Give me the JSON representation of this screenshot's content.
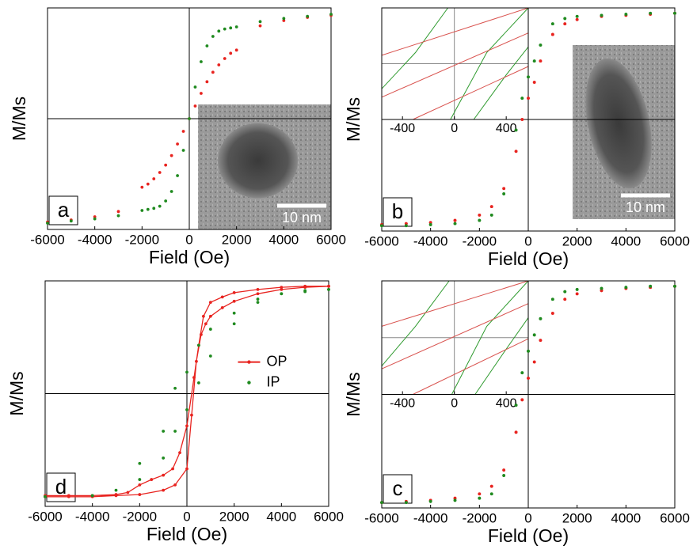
{
  "chart_data": [
    {
      "type": "scatter",
      "panel_label": "a",
      "xlabel": "Field (Oe)",
      "ylabel": "M/Ms",
      "xlim": [
        -6000,
        6000
      ],
      "ylim": [
        -1.05,
        1.05
      ],
      "xticks": [
        -6000,
        -4000,
        -2000,
        0,
        2000,
        4000,
        6000
      ],
      "x": [
        -6000,
        -5000,
        -4000,
        -3000,
        -2000,
        -1750,
        -1500,
        -1250,
        -1000,
        -750,
        -500,
        -250,
        0,
        250,
        500,
        750,
        1000,
        1250,
        1500,
        1750,
        2000,
        3000,
        4000,
        5000,
        6000
      ],
      "series": [
        {
          "color": "#e8231f",
          "values": [
            -0.98,
            -0.96,
            -0.93,
            -0.88,
            -0.65,
            -0.62,
            -0.57,
            -0.51,
            -0.44,
            -0.35,
            -0.24,
            -0.12,
            0,
            0.12,
            0.24,
            0.35,
            0.44,
            0.51,
            0.57,
            0.62,
            0.65,
            0.88,
            0.93,
            0.96,
            0.98
          ]
        },
        {
          "color": "#1f8a1f",
          "values": [
            -0.99,
            -0.97,
            -0.95,
            -0.92,
            -0.87,
            -0.86,
            -0.85,
            -0.83,
            -0.78,
            -0.69,
            -0.54,
            -0.3,
            0,
            0.3,
            0.54,
            0.69,
            0.78,
            0.83,
            0.85,
            0.86,
            0.87,
            0.92,
            0.95,
            0.97,
            0.99
          ]
        }
      ],
      "image": {
        "scale_label": "10 nm"
      }
    },
    {
      "type": "scatter",
      "panel_label": "b",
      "xlabel": "Field (Oe)",
      "ylabel": "M/Ms",
      "xlim": [
        -6000,
        6000
      ],
      "ylim": [
        -1.05,
        1.05
      ],
      "xticks": [
        -6000,
        -4000,
        -2000,
        0,
        2000,
        4000,
        6000
      ],
      "series": [
        {
          "color": "#e8231f",
          "x": [
            6000,
            5000,
            4000,
            3000,
            2000,
            1500,
            1000,
            500,
            250,
            0,
            -250,
            -500,
            -1000,
            -1500,
            -2000,
            -3000,
            -4000,
            -5000,
            -6000,
            -6000,
            -5000,
            -4000,
            -3000,
            -2000,
            -1500,
            -1000,
            -500,
            -250,
            0,
            250,
            500,
            1000,
            1500,
            2000,
            3000,
            4000,
            5000,
            6000
          ],
          "y": [
            1,
            0.99,
            0.98,
            0.97,
            0.94,
            0.9,
            0.8,
            0.55,
            0.35,
            0.2,
            0,
            -0.3,
            -0.65,
            -0.82,
            -0.9,
            -0.95,
            -0.97,
            -0.98,
            -0.99,
            -0.99,
            -0.98,
            -0.97,
            -0.95,
            -0.9,
            -0.82,
            -0.65,
            -0.3,
            0,
            0.2,
            0.35,
            0.55,
            0.8,
            0.9,
            0.94,
            0.97,
            0.98,
            0.99,
            1
          ]
        },
        {
          "color": "#1f8a1f",
          "x": [
            6000,
            5000,
            4000,
            3000,
            2000,
            1500,
            1000,
            500,
            250,
            0,
            -250,
            -500,
            -1000,
            -1500,
            -2000,
            -3000,
            -4000,
            -5000,
            -6000,
            -6000,
            -5000,
            -4000,
            -3000,
            -2000,
            -1500,
            -1000,
            -500,
            -250,
            0,
            250,
            500,
            1000,
            1500,
            2000,
            3000,
            4000,
            5000,
            6000
          ],
          "y": [
            1,
            1,
            0.99,
            0.98,
            0.97,
            0.95,
            0.9,
            0.7,
            0.55,
            0.4,
            0.2,
            -0.1,
            -0.7,
            -0.9,
            -0.95,
            -0.98,
            -0.99,
            -1,
            -1,
            -1,
            -1,
            -0.99,
            -0.98,
            -0.95,
            -0.9,
            -0.7,
            -0.1,
            0.2,
            0.4,
            0.55,
            0.7,
            0.9,
            0.95,
            0.97,
            0.98,
            0.99,
            1,
            1
          ]
        }
      ],
      "inset": {
        "xlim": [
          -560,
          570
        ],
        "ylim": [
          -1,
          1
        ],
        "xticks": [
          -400,
          0,
          400
        ],
        "series": [
          {
            "color": "#2e9a2e",
            "x": [
              -560,
              -300,
              -50,
              null,
              -30,
              250,
              570,
              null,
              150,
              400,
              570
            ],
            "y": [
              -0.45,
              0.2,
              1,
              null,
              -1,
              0.2,
              1,
              null,
              -1,
              -0.2,
              0.3
            ]
          },
          {
            "color": "#d9534f",
            "x": [
              -560,
              570,
              null,
              -560,
              570,
              null,
              -320,
              570
            ],
            "y": [
              0.15,
              1,
              null,
              -0.6,
              0.55,
              null,
              -1,
              -0.05
            ]
          }
        ]
      },
      "image": {
        "scale_label": "10 nm"
      }
    },
    {
      "type": "scatter",
      "panel_label": "d",
      "xlabel": "Field (Oe)",
      "ylabel": "M/Ms",
      "xlim": [
        -6000,
        6000
      ],
      "ylim": [
        -1.05,
        1.05
      ],
      "xticks": [
        -6000,
        -4000,
        -2000,
        0,
        2000,
        4000,
        6000
      ],
      "legend": "right",
      "series": [
        {
          "name": "OP",
          "color": "#e8231f",
          "line": true,
          "x": [
            6000,
            5000,
            4000,
            3000,
            2000,
            1500,
            1000,
            700,
            500,
            300,
            0,
            -300,
            -600,
            -1000,
            -1500,
            -2000,
            -2500,
            -3000,
            -4000,
            -5000,
            -6000,
            null,
            -6000,
            -5000,
            -4000,
            -3000,
            -2000,
            -1000,
            -500,
            0,
            200,
            400,
            600,
            800,
            1000,
            1500,
            2000,
            3000,
            4000,
            5000,
            6000
          ],
          "y": [
            1,
            1,
            0.99,
            0.97,
            0.94,
            0.9,
            0.85,
            0.72,
            0.45,
            0.15,
            -0.3,
            -0.55,
            -0.7,
            -0.76,
            -0.8,
            -0.85,
            -0.92,
            -0.94,
            -0.95,
            -0.95,
            -0.95,
            null,
            -0.96,
            -0.96,
            -0.96,
            -0.95,
            -0.94,
            -0.9,
            -0.85,
            -0.7,
            -0.2,
            0.3,
            0.55,
            0.65,
            0.72,
            0.8,
            0.86,
            0.93,
            0.97,
            0.99,
            1
          ]
        },
        {
          "name": "IP",
          "color": "#1f8a1f",
          "x": [
            6000,
            5000,
            4000,
            3000,
            2000,
            1000,
            500,
            0,
            -500,
            -1000,
            -2000,
            -3000,
            -4000,
            -6000,
            -6000,
            -4000,
            -2000,
            -1000,
            -500,
            0,
            500,
            1000,
            2000,
            3000,
            4000,
            5000,
            6000
          ],
          "y": [
            0.97,
            0.96,
            0.93,
            0.85,
            0.75,
            0.6,
            0.45,
            0.2,
            0.05,
            -0.35,
            -0.65,
            -0.9,
            -0.95,
            -0.96,
            -0.96,
            -0.95,
            -0.8,
            -0.6,
            -0.35,
            -0.15,
            0.1,
            0.35,
            0.65,
            0.88,
            0.93,
            0.95,
            0.97
          ]
        }
      ]
    },
    {
      "type": "scatter",
      "panel_label": "c",
      "xlabel": "Field (Oe)",
      "ylabel": "M/Ms",
      "xlim": [
        -6000,
        6000
      ],
      "ylim": [
        -1.05,
        1.05
      ],
      "xticks": [
        -6000,
        -4000,
        -2000,
        0,
        2000,
        4000,
        6000
      ],
      "series": [
        {
          "color": "#e8231f",
          "x": [
            6000,
            5000,
            4000,
            3000,
            2000,
            1500,
            1000,
            500,
            250,
            0,
            -250,
            -500,
            -1000,
            -1500,
            -2000,
            -3000,
            -4000,
            -5000,
            -6000,
            -6000,
            -5000,
            -4000,
            -3000,
            -2000,
            -1500,
            -1000,
            -500,
            -250,
            0,
            250,
            500,
            1000,
            1500,
            2000,
            3000,
            4000,
            5000,
            6000
          ],
          "y": [
            1,
            0.99,
            0.98,
            0.96,
            0.93,
            0.88,
            0.75,
            0.5,
            0.3,
            0.15,
            -0.05,
            -0.35,
            -0.7,
            -0.85,
            -0.92,
            -0.96,
            -0.98,
            -0.99,
            -1,
            -1,
            -0.99,
            -0.98,
            -0.96,
            -0.92,
            -0.85,
            -0.7,
            -0.35,
            -0.05,
            0.15,
            0.3,
            0.5,
            0.75,
            0.88,
            0.93,
            0.96,
            0.98,
            0.99,
            1
          ]
        },
        {
          "color": "#1f8a1f",
          "x": [
            6000,
            5000,
            4000,
            3000,
            2000,
            1500,
            1000,
            500,
            250,
            0,
            -250,
            -500,
            -1000,
            -1500,
            -2000,
            -3000,
            -4000,
            -5000,
            -6000,
            -6000,
            -5000,
            -4000,
            -3000,
            -2000,
            -1500,
            -1000,
            -500,
            -250,
            0,
            250,
            500,
            1000,
            1500,
            2000,
            3000,
            4000,
            5000,
            6000
          ],
          "y": [
            1,
            1,
            0.99,
            0.98,
            0.97,
            0.95,
            0.88,
            0.7,
            0.55,
            0.4,
            0.2,
            -0.1,
            -0.75,
            -0.92,
            -0.96,
            -0.98,
            -0.99,
            -1,
            -1,
            -1,
            -1,
            -0.99,
            -0.98,
            -0.96,
            -0.92,
            -0.75,
            -0.1,
            0.2,
            0.4,
            0.55,
            0.7,
            0.88,
            0.95,
            0.97,
            0.98,
            0.99,
            1,
            1
          ]
        }
      ],
      "inset": {
        "xlim": [
          -560,
          570
        ],
        "ylim": [
          -1,
          1
        ],
        "xticks": [
          -400,
          0,
          400
        ],
        "series": [
          {
            "color": "#2e9a2e",
            "x": [
              -560,
              -300,
              -40,
              null,
              -20,
              250,
              570,
              null,
              160,
              400,
              570
            ],
            "y": [
              -0.5,
              0.2,
              1,
              null,
              -1,
              0.2,
              1,
              null,
              -1,
              -0.2,
              0.35
            ]
          },
          {
            "color": "#d9534f",
            "x": [
              -560,
              570,
              null,
              -560,
              570,
              null,
              -320,
              570
            ],
            "y": [
              0.2,
              1,
              null,
              -0.55,
              0.6,
              null,
              -1,
              -0.02
            ]
          }
        ]
      }
    }
  ]
}
